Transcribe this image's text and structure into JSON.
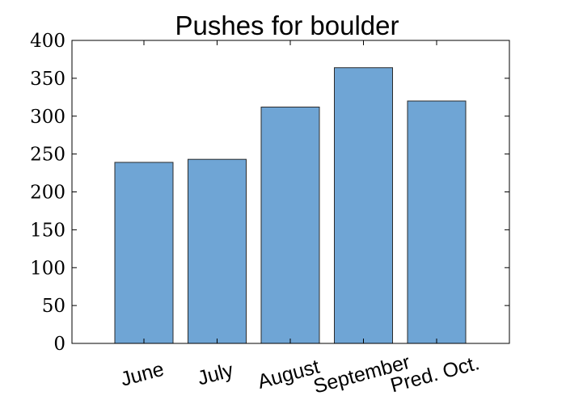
{
  "chart_data": {
    "type": "bar",
    "title": "Pushes for boulder",
    "xlabel": "",
    "ylabel": "",
    "categories": [
      "June",
      "July",
      "August",
      "September",
      "Pred. Oct."
    ],
    "values": [
      239,
      243,
      312,
      364,
      320
    ],
    "ylim": [
      0,
      400
    ],
    "yticks": [
      0,
      50,
      100,
      150,
      200,
      250,
      300,
      350,
      400
    ],
    "grid": false,
    "legend": "none",
    "bar_color": "#6fa5d5",
    "edge_color": "#2b2b2b"
  }
}
